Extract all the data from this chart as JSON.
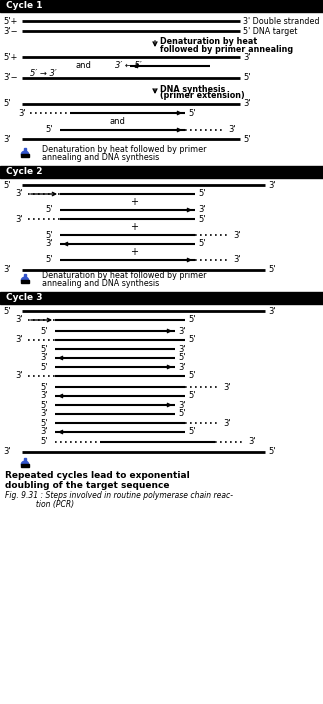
{
  "bg_color": "#ffffff",
  "header_bg": "#000000",
  "header_fg": "#ffffff",
  "cycle1_header": "Cycle 1",
  "cycle2_header": "Cycle 2",
  "cycle3_header": "Cycle 3",
  "fig_caption_line1": "Fig. 9.31 : Steps involved in routine polymerase chain reac-",
  "fig_caption_line2": "             tion (PCR)"
}
